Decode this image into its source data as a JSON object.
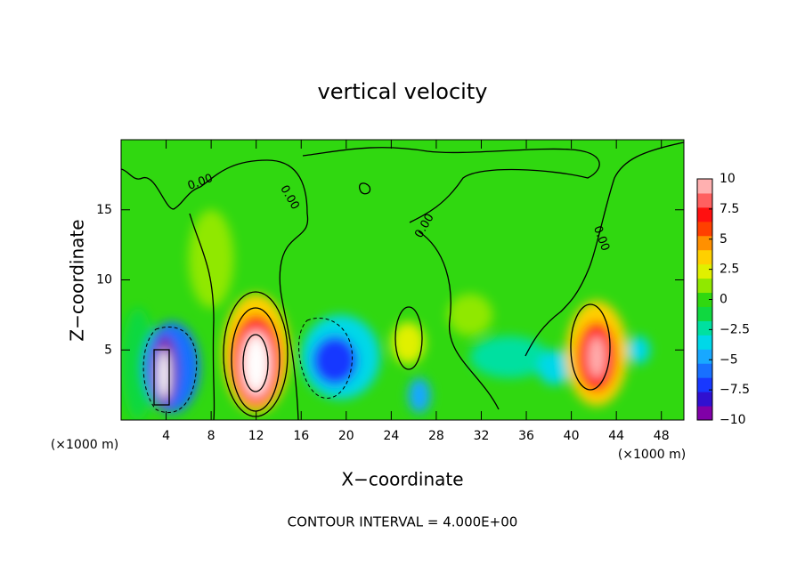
{
  "chart_data": {
    "type": "contour",
    "title": "vertical velocity",
    "xlabel": "X−coordinate",
    "ylabel": "Z−coordinate",
    "x_unit_label": "(×1000 m)",
    "y_unit_label": "(×1000 m)",
    "footnote": "CONTOUR INTERVAL = 4.000E+00",
    "xlim": [
      0,
      50
    ],
    "ylim": [
      0,
      20
    ],
    "xticks": [
      4,
      8,
      12,
      16,
      20,
      24,
      28,
      32,
      36,
      40,
      44,
      48
    ],
    "yticks": [
      5,
      10,
      15
    ],
    "contour_labels": [
      "0.00",
      "0.00",
      "0.00",
      "0.00"
    ],
    "colorbar": {
      "clim": [
        -10,
        10
      ],
      "ticks": [
        {
          "value": -10,
          "label": "−10"
        },
        {
          "value": -7.5,
          "label": "−7.5"
        },
        {
          "value": -5,
          "label": "−5"
        },
        {
          "value": -2.5,
          "label": "−2.5"
        },
        0,
        2.5,
        5,
        7.5,
        10
      ],
      "colors": [
        "#8000a8",
        "#3010d0",
        "#1838ff",
        "#1870ff",
        "#18a8ff",
        "#00d8e8",
        "#00e0a0",
        "#10d840",
        "#30d810",
        "#90e800",
        "#e0f000",
        "#ffd000",
        "#ff9000",
        "#ff4000",
        "#ff1010",
        "#ff6060",
        "#ffb0b0"
      ],
      "out_of_range_color": "#ffffff"
    },
    "field": [
      {
        "x": [
          0,
          3
        ],
        "y": [
          0,
          8
        ],
        "value": -1.5
      },
      {
        "x": [
          6,
          10
        ],
        "y": [
          8,
          15
        ],
        "value": 1.5
      },
      {
        "x": [
          29,
          33
        ],
        "y": [
          6,
          9
        ],
        "value": 1.5
      },
      {
        "x": [
          31,
          38
        ],
        "y": [
          3,
          6
        ],
        "value": -2
      },
      {
        "x": [
          24,
          27
        ],
        "y": [
          4,
          7
        ],
        "value": 2.5
      },
      {
        "x": [
          45,
          47
        ],
        "y": [
          4,
          6
        ],
        "value": -3
      },
      {
        "x": [
          37,
          40
        ],
        "y": [
          2.5,
          5
        ],
        "value": -4
      },
      {
        "x": [
          25.5,
          27.5
        ],
        "y": [
          0.5,
          3
        ],
        "value": -5
      },
      {
        "x": [
          2,
          7
        ],
        "y": [
          0.5,
          7
        ],
        "value": -6
      },
      {
        "x": [
          2.8,
          5
        ],
        "y": [
          1,
          6
        ],
        "value": -9
      },
      {
        "x": [
          3.3,
          4.3
        ],
        "y": [
          1.5,
          5
        ],
        "value": -14
      },
      {
        "x": [
          9,
          15
        ],
        "y": [
          0.5,
          9
        ],
        "value": 4
      },
      {
        "x": [
          9.8,
          14.2
        ],
        "y": [
          1,
          7.5
        ],
        "value": 7
      },
      {
        "x": [
          10.5,
          13.5
        ],
        "y": [
          1.5,
          6.5
        ],
        "value": 10
      },
      {
        "x": [
          11,
          13
        ],
        "y": [
          2,
          6
        ],
        "value": 14
      },
      {
        "x": [
          16,
          23
        ],
        "y": [
          1.5,
          7.5
        ],
        "value": -4
      },
      {
        "x": [
          17,
          21
        ],
        "y": [
          2.5,
          6
        ],
        "value": -7
      },
      {
        "x": [
          39.5,
          45
        ],
        "y": [
          1,
          8.5
        ],
        "value": 4
      },
      {
        "x": [
          40.5,
          44
        ],
        "y": [
          2,
          7
        ],
        "value": 7
      },
      {
        "x": [
          41.5,
          43
        ],
        "y": [
          3,
          6
        ],
        "value": 9.5
      }
    ]
  }
}
